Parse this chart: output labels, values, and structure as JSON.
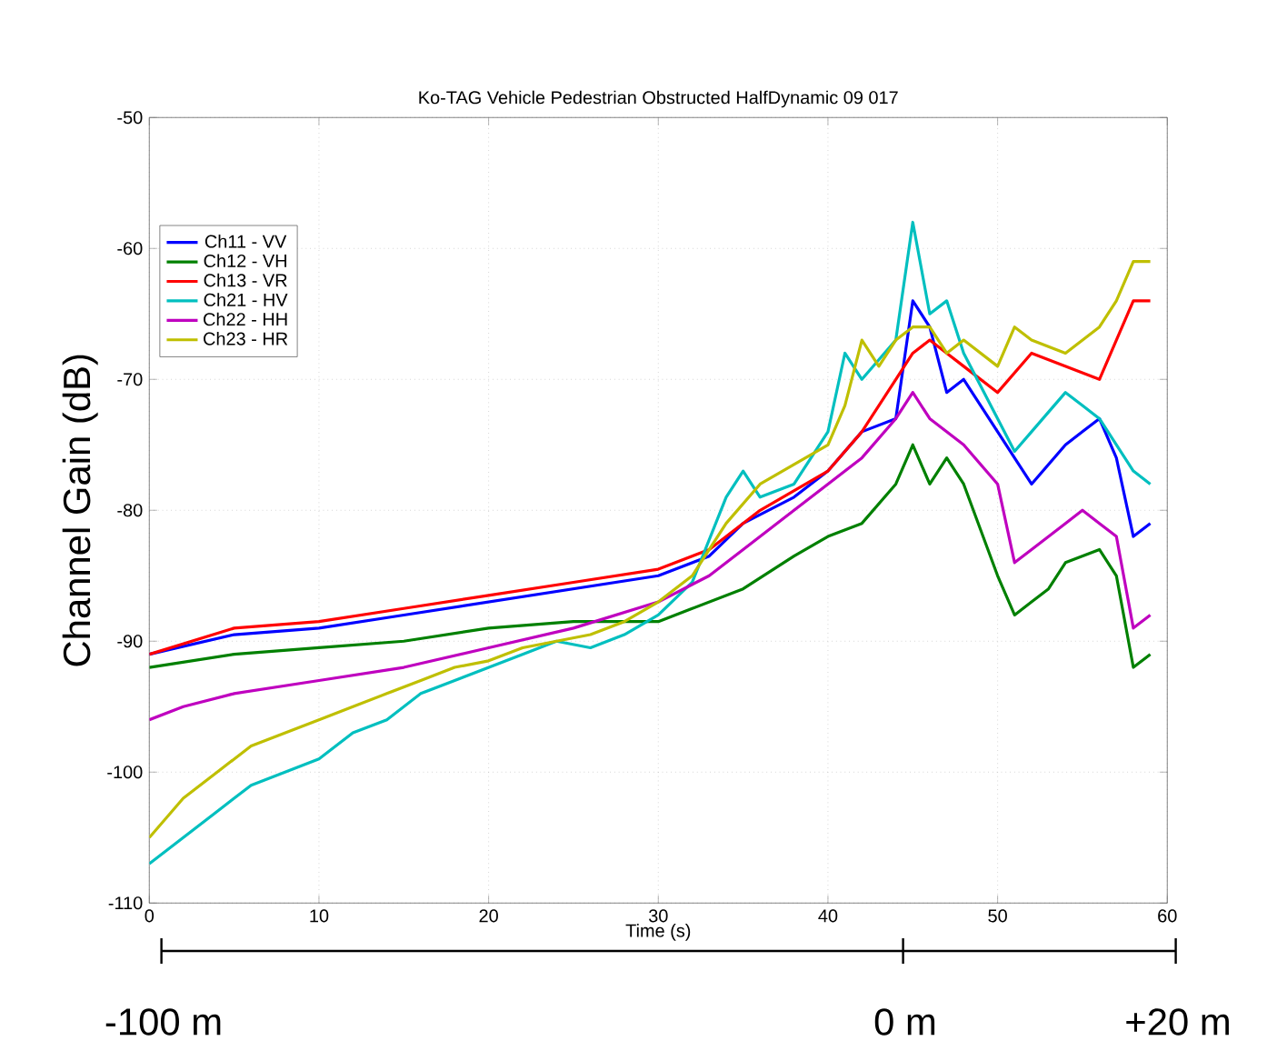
{
  "chart_data": {
    "type": "line",
    "title": "Ko-TAG Vehicle Pedestrian Obstructed HalfDynamic 09 017",
    "xlabel": "Time (s)",
    "ylabel": "Channel Gain (dB)",
    "xlim": [
      0,
      60
    ],
    "ylim": [
      -110,
      -50
    ],
    "xticks": [
      0,
      10,
      20,
      30,
      40,
      50,
      60
    ],
    "yticks": [
      -110,
      -100,
      -90,
      -80,
      -70,
      -60,
      -50
    ],
    "grid": true,
    "legend": "top left",
    "annotations": [
      "-100 m",
      "0 m",
      "+20 m"
    ],
    "series": [
      {
        "name": "Ch11 - VV",
        "color": "#0000ff",
        "x": [
          0,
          5,
          10,
          15,
          20,
          25,
          30,
          33,
          35,
          38,
          40,
          42,
          44,
          45,
          46,
          47,
          48,
          50,
          52,
          54,
          55,
          56,
          57,
          58,
          59
        ],
        "values": [
          -91,
          -89.5,
          -89,
          -88,
          -87,
          -86,
          -85,
          -83.5,
          -81,
          -79,
          -77,
          -74,
          -73,
          -64,
          -66,
          -71,
          -70,
          -74,
          -78,
          -75,
          -74,
          -73,
          -76,
          -82,
          -81
        ]
      },
      {
        "name": "Ch12 - VH",
        "color": "#008000",
        "x": [
          0,
          5,
          10,
          15,
          20,
          25,
          30,
          32,
          35,
          38,
          40,
          42,
          44,
          45,
          46,
          47,
          48,
          50,
          51,
          52,
          53,
          54,
          56,
          57,
          58,
          59
        ],
        "values": [
          -92,
          -91,
          -90.5,
          -90,
          -89,
          -88.5,
          -88.5,
          -87.5,
          -86,
          -83.5,
          -82,
          -81,
          -78,
          -75,
          -78,
          -76,
          -78,
          -85,
          -88,
          -87,
          -86,
          -84,
          -83,
          -85,
          -92,
          -91
        ]
      },
      {
        "name": "Ch13 - VR",
        "color": "#ff0000",
        "x": [
          0,
          5,
          10,
          15,
          20,
          25,
          30,
          33,
          36,
          40,
          42,
          44,
          45,
          46,
          47,
          48,
          50,
          52,
          54,
          56,
          57,
          58,
          59
        ],
        "values": [
          -91,
          -89,
          -88.5,
          -87.5,
          -86.5,
          -85.5,
          -84.5,
          -83,
          -80,
          -77,
          -74,
          -70,
          -68,
          -67,
          -68,
          -69,
          -71,
          -68,
          -69,
          -70,
          -67,
          -64,
          -64
        ]
      },
      {
        "name": "Ch21 - HV",
        "color": "#00bfbf",
        "x": [
          0,
          2,
          4,
          6,
          8,
          10,
          12,
          14,
          16,
          18,
          20,
          22,
          24,
          26,
          28,
          30,
          32,
          34,
          35,
          36,
          38,
          40,
          41,
          42,
          44,
          45,
          46,
          47,
          48,
          50,
          51,
          52,
          54,
          55,
          56,
          57,
          58,
          59
        ],
        "values": [
          -107,
          -105,
          -103,
          -101,
          -100,
          -99,
          -97,
          -96,
          -94,
          -93,
          -92,
          -91,
          -90,
          -90.5,
          -89.5,
          -88,
          -85.5,
          -79,
          -77,
          -79,
          -78,
          -74,
          -68,
          -70,
          -67,
          -58,
          -65,
          -64,
          -68,
          -73,
          -75.5,
          -74,
          -71,
          -72,
          -73,
          -75,
          -77,
          -78
        ]
      },
      {
        "name": "Ch22 - HH",
        "color": "#bf00bf",
        "x": [
          0,
          2,
          5,
          10,
          15,
          20,
          25,
          30,
          33,
          35,
          38,
          40,
          42,
          44,
          45,
          46,
          48,
          50,
          51,
          52,
          54,
          55,
          56,
          57,
          58,
          59
        ],
        "values": [
          -96,
          -95,
          -94,
          -93,
          -92,
          -90.5,
          -89,
          -87,
          -85,
          -83,
          -80,
          -78,
          -76,
          -73,
          -71,
          -73,
          -75,
          -78,
          -84,
          -83,
          -81,
          -80,
          -81,
          -82,
          -89,
          -88
        ]
      },
      {
        "name": "Ch23 - HR",
        "color": "#bfbf00",
        "x": [
          0,
          2,
          4,
          6,
          8,
          10,
          12,
          14,
          16,
          18,
          20,
          22,
          24,
          26,
          28,
          30,
          32,
          34,
          36,
          38,
          40,
          41,
          42,
          43,
          44,
          45,
          46,
          47,
          48,
          50,
          51,
          52,
          54,
          56,
          57,
          58,
          59
        ],
        "values": [
          -105,
          -102,
          -100,
          -98,
          -97,
          -96,
          -95,
          -94,
          -93,
          -92,
          -91.5,
          -90.5,
          -90,
          -89.5,
          -88.5,
          -87,
          -85,
          -81,
          -78,
          -76.5,
          -75,
          -72,
          -67,
          -69,
          -67,
          -66,
          -66,
          -68,
          -67,
          -69,
          -66,
          -67,
          -68,
          -66,
          -64,
          -61,
          -61
        ]
      }
    ]
  }
}
